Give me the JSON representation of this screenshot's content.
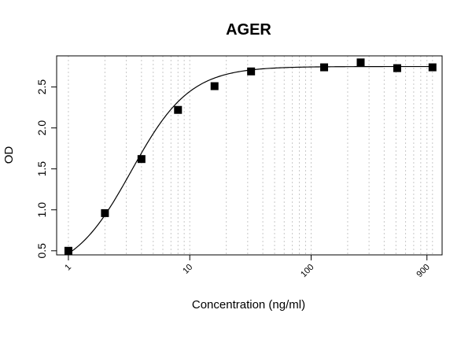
{
  "chart_data": {
    "type": "scatter",
    "title": "AGER",
    "xlabel": "Concentration (ng/ml)",
    "ylabel": "OD",
    "x_scale": "log",
    "xlim": [
      0.8,
      1200
    ],
    "ylim": [
      0.45,
      2.88
    ],
    "x_ticks": [
      1,
      10,
      100,
      900
    ],
    "x_tick_labels": [
      "1",
      "10",
      "100",
      "900"
    ],
    "y_ticks": [
      0.5,
      1.0,
      1.5,
      2.0,
      2.5
    ],
    "y_tick_labels": [
      "0.5",
      "1.0",
      "1.5",
      "2.0",
      "2.5"
    ],
    "grid": "vertical dotted at log minor ticks",
    "marker": "filled square",
    "points": [
      {
        "x": 1,
        "y": 0.5
      },
      {
        "x": 2,
        "y": 0.96
      },
      {
        "x": 4,
        "y": 1.62
      },
      {
        "x": 8,
        "y": 2.22
      },
      {
        "x": 16,
        "y": 2.51
      },
      {
        "x": 32,
        "y": 2.69
      },
      {
        "x": 128,
        "y": 2.74
      },
      {
        "x": 256,
        "y": 2.8
      },
      {
        "x": 512,
        "y": 2.73
      },
      {
        "x": 1000,
        "y": 2.74
      }
    ],
    "fit": {
      "type": "4PL",
      "bottom": 0.2,
      "top": 2.75,
      "ec50": 3.3,
      "hill": 1.8
    },
    "colors": {
      "marker": "#000000",
      "line": "#000000",
      "grid": "#c8c8c8",
      "frame": "#000000"
    }
  }
}
